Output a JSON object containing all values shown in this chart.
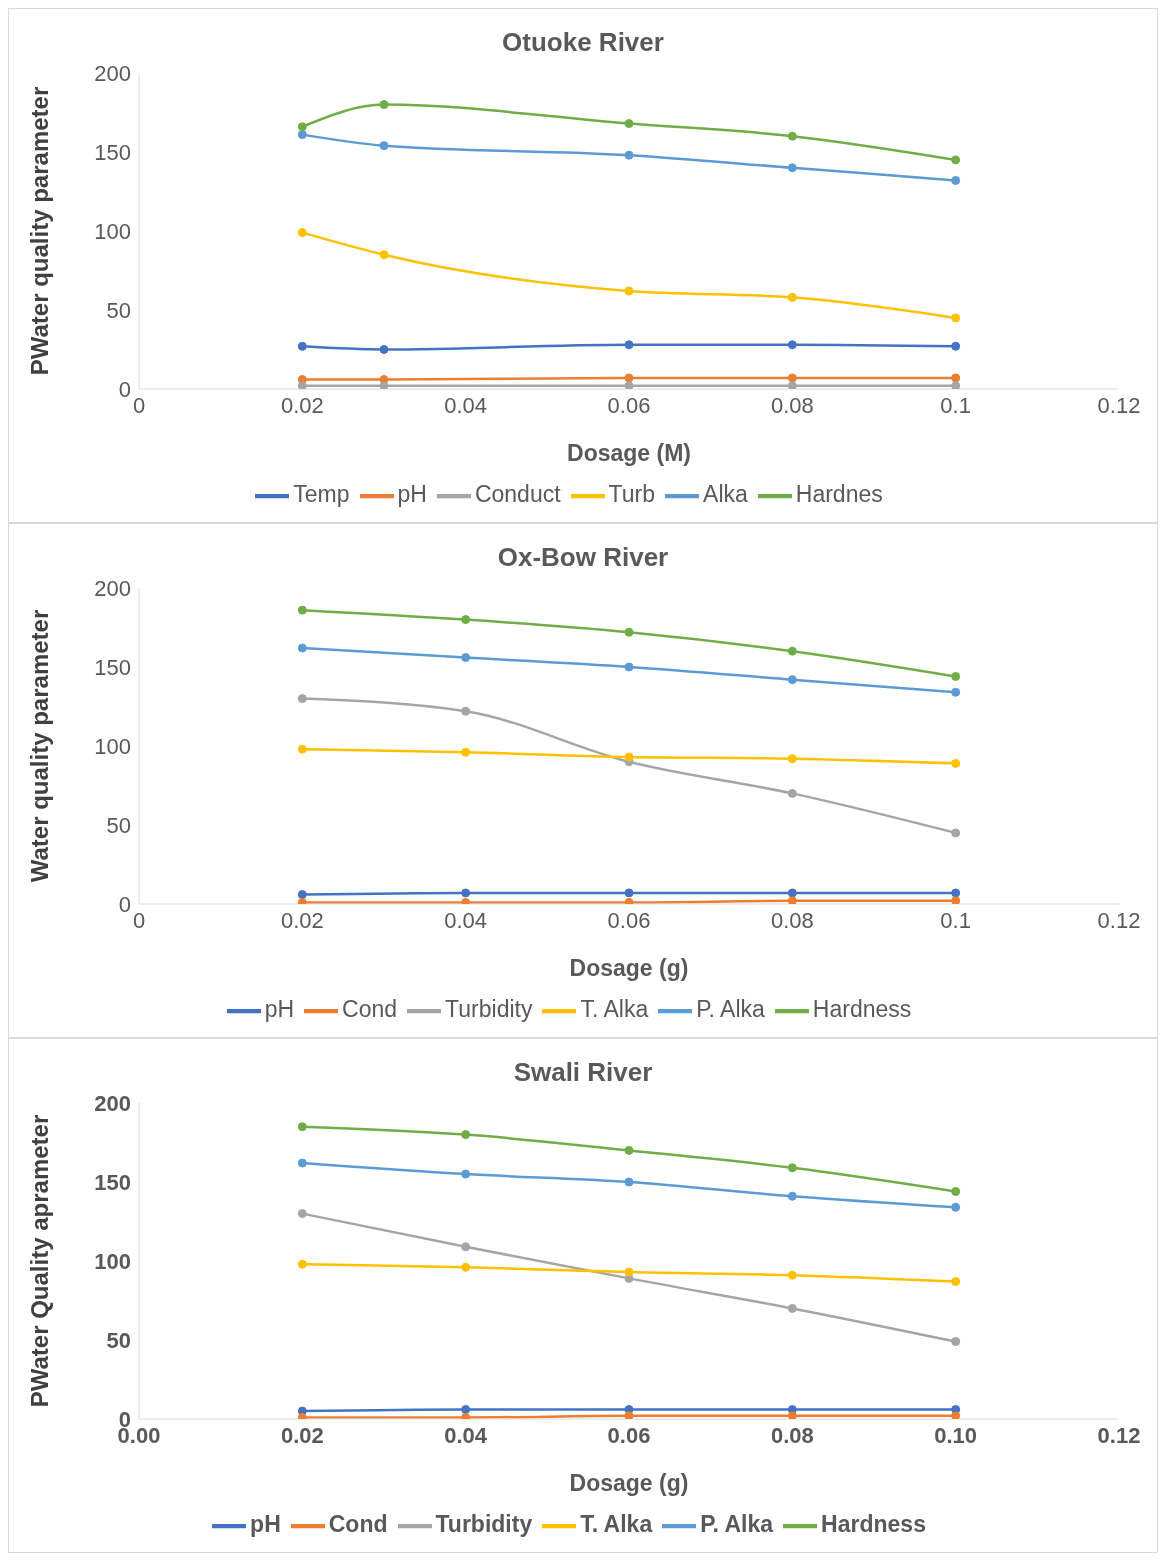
{
  "chart_data": [
    {
      "type": "line",
      "title": "Otuoke River",
      "xlabel": "Dosage (M)",
      "ylabel": "PWater quality parameter",
      "x": [
        0.02,
        0.03,
        0.06,
        0.08,
        0.1
      ],
      "xlim": [
        0,
        0.12
      ],
      "xticks": [
        0,
        0.02,
        0.04,
        0.06,
        0.08,
        0.1,
        0.12
      ],
      "ylim": [
        0,
        200
      ],
      "yticks": [
        0,
        50,
        100,
        150,
        200
      ],
      "grid": false,
      "legend": "bottom",
      "marker": "circle",
      "line_style": "solid",
      "series": [
        {
          "name": "Temp",
          "color": "#4472c4",
          "values": [
            27,
            25,
            28,
            28,
            27
          ]
        },
        {
          "name": "pH",
          "color": "#ed7d31",
          "values": [
            6,
            6,
            7,
            7,
            7
          ]
        },
        {
          "name": "Conduct",
          "color": "#a5a5a5",
          "values": [
            2,
            2,
            2,
            2,
            2
          ]
        },
        {
          "name": "Turb",
          "color": "#ffc000",
          "values": [
            99,
            85,
            62,
            58,
            45
          ]
        },
        {
          "name": "Alka",
          "color": "#5b9bd5",
          "values": [
            161,
            154,
            148,
            140,
            132
          ]
        },
        {
          "name": "Hardnes",
          "color": "#70ad47",
          "values": [
            166,
            180,
            168,
            160,
            145
          ]
        }
      ]
    },
    {
      "type": "line",
      "title": "Ox-Bow River",
      "xlabel": "Dosage (g)",
      "ylabel": "Water quality parameter",
      "x": [
        0.02,
        0.04,
        0.06,
        0.08,
        0.1
      ],
      "xlim": [
        0,
        0.12
      ],
      "xticks": [
        0,
        0.02,
        0.04,
        0.06,
        0.08,
        0.1,
        0.12
      ],
      "ylim": [
        0,
        200
      ],
      "yticks": [
        0,
        50,
        100,
        150,
        200
      ],
      "grid": false,
      "legend": "bottom",
      "marker": "circle",
      "line_style": "solid",
      "series": [
        {
          "name": "pH",
          "color": "#4472c4",
          "values": [
            6,
            7,
            7,
            7,
            7
          ]
        },
        {
          "name": "Cond",
          "color": "#ed7d31",
          "values": [
            1,
            1,
            1,
            2,
            2
          ]
        },
        {
          "name": "Turbidity",
          "color": "#a5a5a5",
          "values": [
            130,
            122,
            90,
            70,
            45
          ]
        },
        {
          "name": "T. Alka",
          "color": "#ffc000",
          "values": [
            98,
            96,
            93,
            92,
            89
          ]
        },
        {
          "name": "P. Alka",
          "color": "#5b9bd5",
          "values": [
            162,
            156,
            150,
            142,
            134
          ]
        },
        {
          "name": "Hardness",
          "color": "#70ad47",
          "values": [
            186,
            180,
            172,
            160,
            144
          ]
        }
      ]
    },
    {
      "type": "line",
      "title": "Swali River",
      "xlabel": "Dosage (g)",
      "ylabel": "PWater Quality aprameter",
      "x": [
        0.02,
        0.04,
        0.06,
        0.08,
        0.1
      ],
      "xlim": [
        0,
        0.12
      ],
      "xticks": [
        {
          "value": 0,
          "label": "0.00"
        },
        {
          "value": 0.02,
          "label": "0.02"
        },
        {
          "value": 0.04,
          "label": "0.04"
        },
        {
          "value": 0.06,
          "label": "0.06"
        },
        {
          "value": 0.08,
          "label": "0.08"
        },
        {
          "value": 0.1,
          "label": "0.10"
        },
        {
          "value": 0.12,
          "label": "0.12"
        }
      ],
      "ylim": [
        0,
        200
      ],
      "yticks": [
        0,
        50,
        100,
        150,
        200
      ],
      "grid": false,
      "legend": "bottom",
      "marker": "circle",
      "line_style": "solid",
      "series": [
        {
          "name": "pH",
          "color": "#4472c4",
          "values": [
            5,
            6,
            6,
            6,
            6
          ]
        },
        {
          "name": "Cond",
          "color": "#ed7d31",
          "values": [
            1,
            1,
            2,
            2,
            2
          ]
        },
        {
          "name": "Turbidity",
          "color": "#a5a5a5",
          "values": [
            130,
            109,
            89,
            70,
            49
          ]
        },
        {
          "name": "T. Alka",
          "color": "#ffc000",
          "values": [
            98,
            96,
            93,
            91,
            87
          ]
        },
        {
          "name": "P. Alka",
          "color": "#5b9bd5",
          "values": [
            162,
            155,
            150,
            141,
            134
          ]
        },
        {
          "name": "Hardness",
          "color": "#70ad47",
          "values": [
            185,
            180,
            170,
            159,
            144
          ]
        }
      ]
    }
  ]
}
